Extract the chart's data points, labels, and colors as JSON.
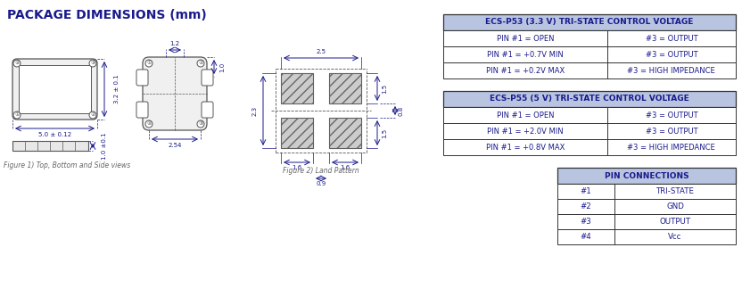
{
  "title": "PACKAGE DIMENSIONS (mm)",
  "title_color": "#1a1a8c",
  "bg_color": "#ffffff",
  "fig_caption1": "Figure 1) Top, Bottom and Side views",
  "fig_caption2": "Figure 2) Land Pattern",
  "table1_header": "ECS-P53 (3.3 V) TRI-STATE CONTROL VOLTAGE",
  "table1_rows": [
    [
      "PIN #1 = OPEN",
      "#3 = OUTPUT"
    ],
    [
      "PIN #1 = +0.7V MIN",
      "#3 = OUTPUT"
    ],
    [
      "PIN #1 = +0.2V MAX",
      "#3 = HIGH IMPEDANCE"
    ]
  ],
  "table2_header": "ECS-P55 (5 V) TRI-STATE CONTROL VOLTAGE",
  "table2_rows": [
    [
      "PIN #1 = OPEN",
      "#3 = OUTPUT"
    ],
    [
      "PIN #1 = +2.0V MIN",
      "#3 = OUTPUT"
    ],
    [
      "PIN #1 = +0.8V MAX",
      "#3 = HIGH IMPEDANCE"
    ]
  ],
  "table3_header": "PIN CONNECTIONS",
  "table3_rows": [
    [
      "#1",
      "TRI-STATE"
    ],
    [
      "#2",
      "GND"
    ],
    [
      "#3",
      "OUTPUT"
    ],
    [
      "#4",
      "Vcc"
    ]
  ],
  "header_bg": "#b8c4e0",
  "header_text_color": "#1a1a8c",
  "row_text_color": "#1a1a8c",
  "border_color": "#333333",
  "dim_color": "#1a1a8c",
  "line_color": "#555555",
  "hatch_color": "#555555"
}
